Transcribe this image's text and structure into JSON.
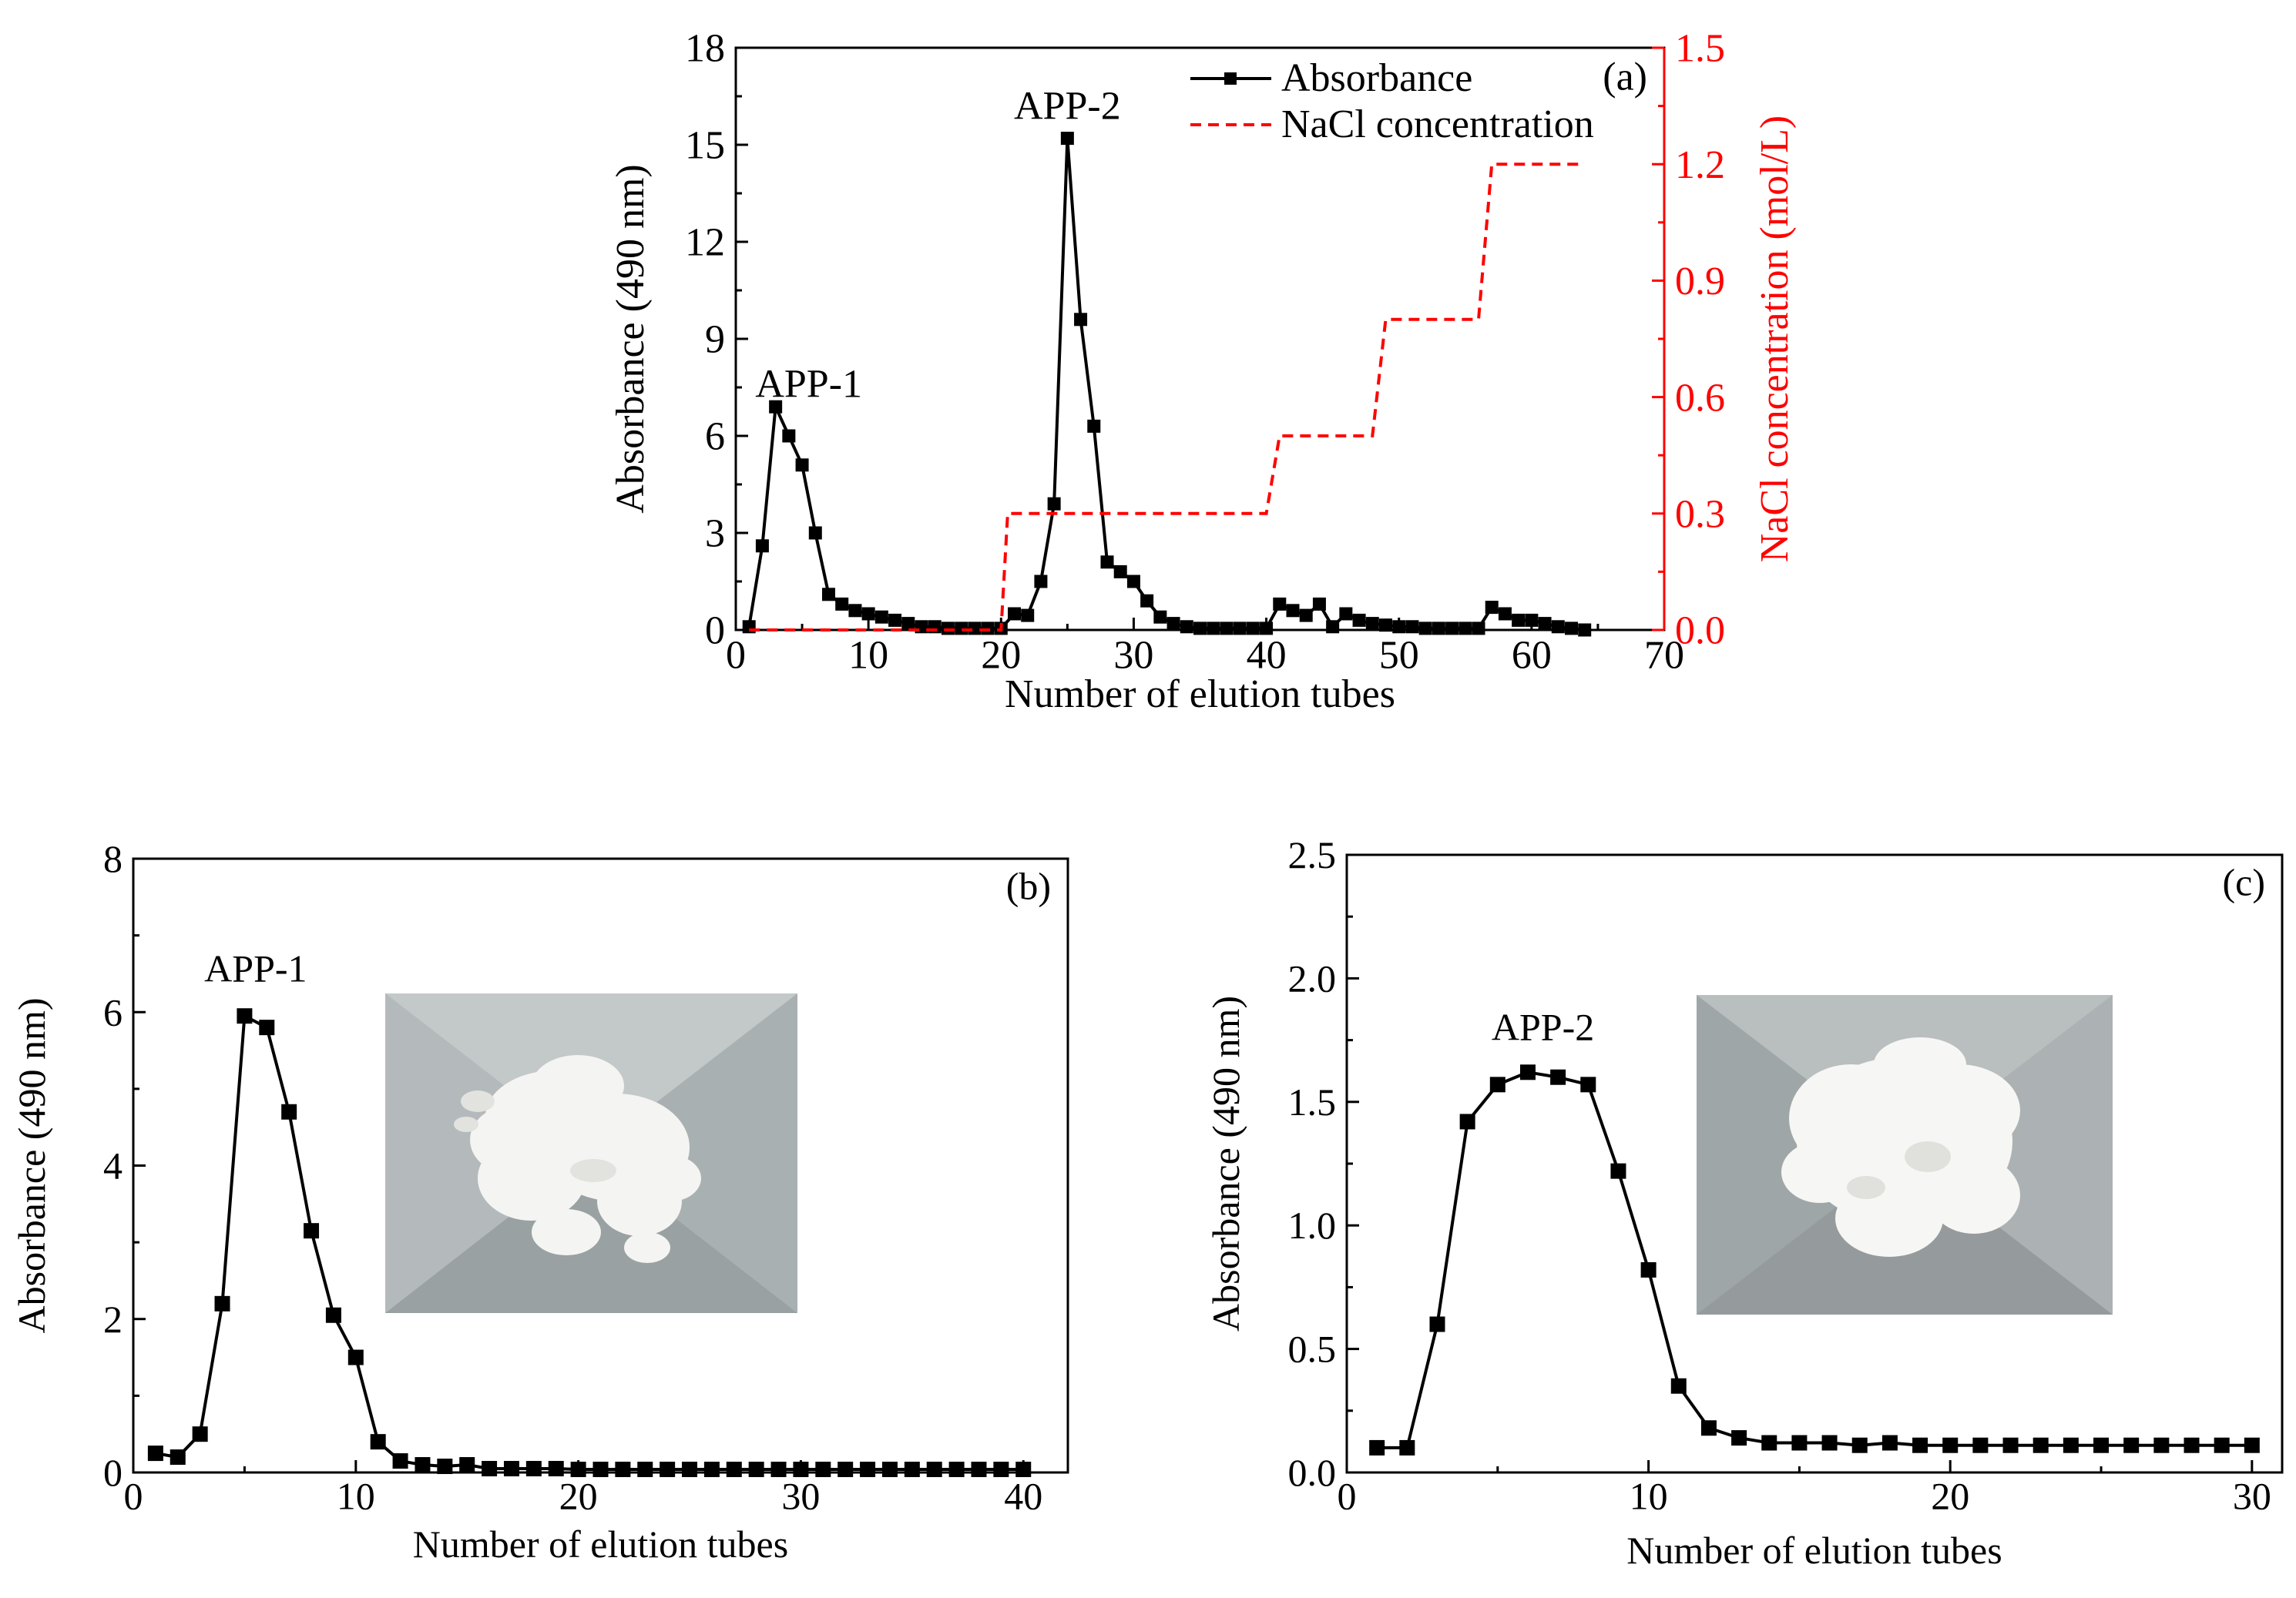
{
  "chart_data": [
    {
      "id": "a",
      "type": "line",
      "panel_label": "(a)",
      "xlabel": "Number of elution tubes",
      "ylabel": "Absorbance (490 nm)",
      "y2label": "NaCl concentration (mol/L)",
      "xlim": [
        0,
        70
      ],
      "ylim": [
        0,
        18
      ],
      "y2lim": [
        0,
        1.5
      ],
      "xticks": [
        "0",
        "10",
        "20",
        "30",
        "40",
        "50",
        "60",
        "70"
      ],
      "yticks": [
        "0",
        "3",
        "6",
        "9",
        "12",
        "15",
        "18"
      ],
      "y2ticks": [
        "0.0",
        "0.3",
        "0.6",
        "0.9",
        "1.2",
        "1.5"
      ],
      "legend": {
        "position": "top-right",
        "entries": [
          "Absorbance",
          "NaCl concentration"
        ]
      },
      "annotations": [
        {
          "text": "APP-1",
          "x": 5.5,
          "y": 7.2
        },
        {
          "text": "APP-2",
          "x": 25,
          "y": 15.8
        }
      ],
      "series": [
        {
          "name": "Absorbance",
          "color": "#000000",
          "axis": "left",
          "x": [
            1,
            2,
            3,
            4,
            5,
            6,
            7,
            8,
            9,
            10,
            11,
            12,
            13,
            14,
            15,
            16,
            17,
            18,
            19,
            20,
            21,
            22,
            23,
            24,
            25,
            26,
            27,
            28,
            29,
            30,
            31,
            32,
            33,
            34,
            35,
            36,
            37,
            38,
            39,
            40,
            41,
            42,
            43,
            44,
            45,
            46,
            47,
            48,
            49,
            50,
            51,
            52,
            53,
            54,
            55,
            56,
            57,
            58,
            59,
            60,
            61,
            62,
            63,
            64
          ],
          "y": [
            0.1,
            2.6,
            6.9,
            6.0,
            5.1,
            3.0,
            1.1,
            0.8,
            0.6,
            0.5,
            0.4,
            0.3,
            0.2,
            0.1,
            0.1,
            0.05,
            0.05,
            0.05,
            0.05,
            0.05,
            0.5,
            0.45,
            1.5,
            3.9,
            15.2,
            9.6,
            6.3,
            2.1,
            1.8,
            1.5,
            0.9,
            0.4,
            0.2,
            0.1,
            0.05,
            0.05,
            0.05,
            0.05,
            0.05,
            0.05,
            0.8,
            0.6,
            0.45,
            0.8,
            0.1,
            0.5,
            0.3,
            0.2,
            0.15,
            0.1,
            0.1,
            0.05,
            0.05,
            0.05,
            0.05,
            0.05,
            0.7,
            0.5,
            0.3,
            0.3,
            0.2,
            0.1,
            0.05,
            0.0
          ]
        },
        {
          "name": "NaCl concentration",
          "color": "#ff0000",
          "axis": "right",
          "style": "dashed-step",
          "x": [
            1,
            20,
            20.5,
            40,
            41,
            48,
            49,
            56,
            57,
            64
          ],
          "y": [
            0.0,
            0.0,
            0.3,
            0.3,
            0.5,
            0.5,
            0.8,
            0.8,
            1.2,
            1.2
          ]
        }
      ]
    },
    {
      "id": "b",
      "type": "line",
      "panel_label": "(b)",
      "xlabel": "Number of elution tubes",
      "ylabel": "Absorbance (490 nm)",
      "xlim": [
        0,
        42
      ],
      "ylim": [
        0,
        8
      ],
      "xticks": [
        "0",
        "10",
        "20",
        "30",
        "40"
      ],
      "yticks": [
        "0",
        "2",
        "4",
        "6",
        "8"
      ],
      "annotations": [
        {
          "text": "APP-1",
          "x": 5.5,
          "y": 6.4
        }
      ],
      "series": [
        {
          "name": "APP-1",
          "color": "#000000",
          "x": [
            1,
            2,
            3,
            4,
            5,
            6,
            7,
            8,
            9,
            10,
            11,
            12,
            13,
            14,
            15,
            16,
            17,
            18,
            19,
            20,
            21,
            22,
            23,
            24,
            25,
            26,
            27,
            28,
            29,
            30,
            31,
            32,
            33,
            34,
            35,
            36,
            37,
            38,
            39,
            40
          ],
          "y": [
            0.25,
            0.2,
            0.5,
            2.2,
            5.95,
            5.8,
            4.7,
            3.15,
            2.05,
            1.5,
            0.4,
            0.15,
            0.1,
            0.08,
            0.1,
            0.05,
            0.05,
            0.05,
            0.05,
            0.04,
            0.04,
            0.04,
            0.04,
            0.04,
            0.04,
            0.04,
            0.04,
            0.04,
            0.04,
            0.04,
            0.04,
            0.04,
            0.04,
            0.04,
            0.04,
            0.04,
            0.04,
            0.04,
            0.04,
            0.04
          ]
        }
      ]
    },
    {
      "id": "c",
      "type": "line",
      "panel_label": "(c)",
      "xlabel": "Number of elution tubes",
      "ylabel": "Absorbance (490 nm)",
      "xlim": [
        0,
        31
      ],
      "ylim": [
        0,
        2.5
      ],
      "xticks": [
        "0",
        "10",
        "20",
        "30"
      ],
      "yticks": [
        "0.0",
        "0.5",
        "1.0",
        "1.5",
        "2.0",
        "2.5"
      ],
      "annotations": [
        {
          "text": "APP-2",
          "x": 6.5,
          "y": 1.75
        }
      ],
      "series": [
        {
          "name": "APP-2",
          "color": "#000000",
          "x": [
            1,
            2,
            3,
            4,
            5,
            6,
            7,
            8,
            9,
            10,
            11,
            12,
            13,
            14,
            15,
            16,
            17,
            18,
            19,
            20,
            21,
            22,
            23,
            24,
            25,
            26,
            27,
            28,
            29,
            30
          ],
          "y": [
            0.1,
            0.1,
            0.6,
            1.42,
            1.57,
            1.62,
            1.6,
            1.57,
            1.22,
            0.82,
            0.35,
            0.18,
            0.14,
            0.12,
            0.12,
            0.12,
            0.11,
            0.12,
            0.11,
            0.11,
            0.11,
            0.11,
            0.11,
            0.11,
            0.11,
            0.11,
            0.11,
            0.11,
            0.11,
            0.11
          ]
        }
      ]
    }
  ]
}
